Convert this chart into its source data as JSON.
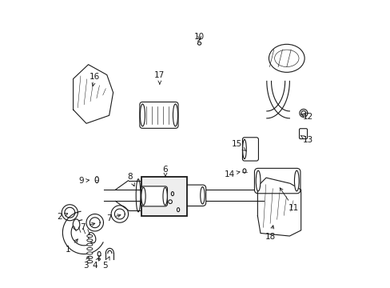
{
  "background_color": "#ffffff",
  "figsize": [
    4.89,
    3.6
  ],
  "dpi": 100,
  "dark": "#1a1a1a",
  "labels": [
    [
      1,
      0.055,
      0.13,
      0.095,
      0.175
    ],
    [
      2,
      0.025,
      0.245,
      0.055,
      0.258
    ],
    [
      3,
      0.115,
      0.075,
      0.13,
      0.115
    ],
    [
      4,
      0.148,
      0.075,
      0.163,
      0.105
    ],
    [
      5,
      0.185,
      0.075,
      0.2,
      0.108
    ],
    [
      6,
      0.395,
      0.41,
      0.395,
      0.385
    ],
    [
      8,
      0.272,
      0.385,
      0.287,
      0.35
    ],
    [
      9,
      0.1,
      0.37,
      0.138,
      0.375
    ],
    [
      10,
      0.515,
      0.875,
      0.515,
      0.855
    ],
    [
      11,
      0.845,
      0.275,
      0.79,
      0.355
    ],
    [
      12,
      0.895,
      0.595,
      0.868,
      0.605
    ],
    [
      13,
      0.895,
      0.515,
      0.868,
      0.53
    ],
    [
      14,
      0.62,
      0.395,
      0.658,
      0.403
    ],
    [
      15,
      0.645,
      0.5,
      0.678,
      0.475
    ],
    [
      16,
      0.148,
      0.735,
      0.14,
      0.7
    ],
    [
      17,
      0.375,
      0.74,
      0.375,
      0.7
    ],
    [
      18,
      0.762,
      0.175,
      0.775,
      0.225
    ]
  ],
  "label_7a": [
    0.105,
    0.21,
    0.158,
    0.225
  ],
  "label_7b": [
    0.198,
    0.24,
    0.248,
    0.255
  ]
}
